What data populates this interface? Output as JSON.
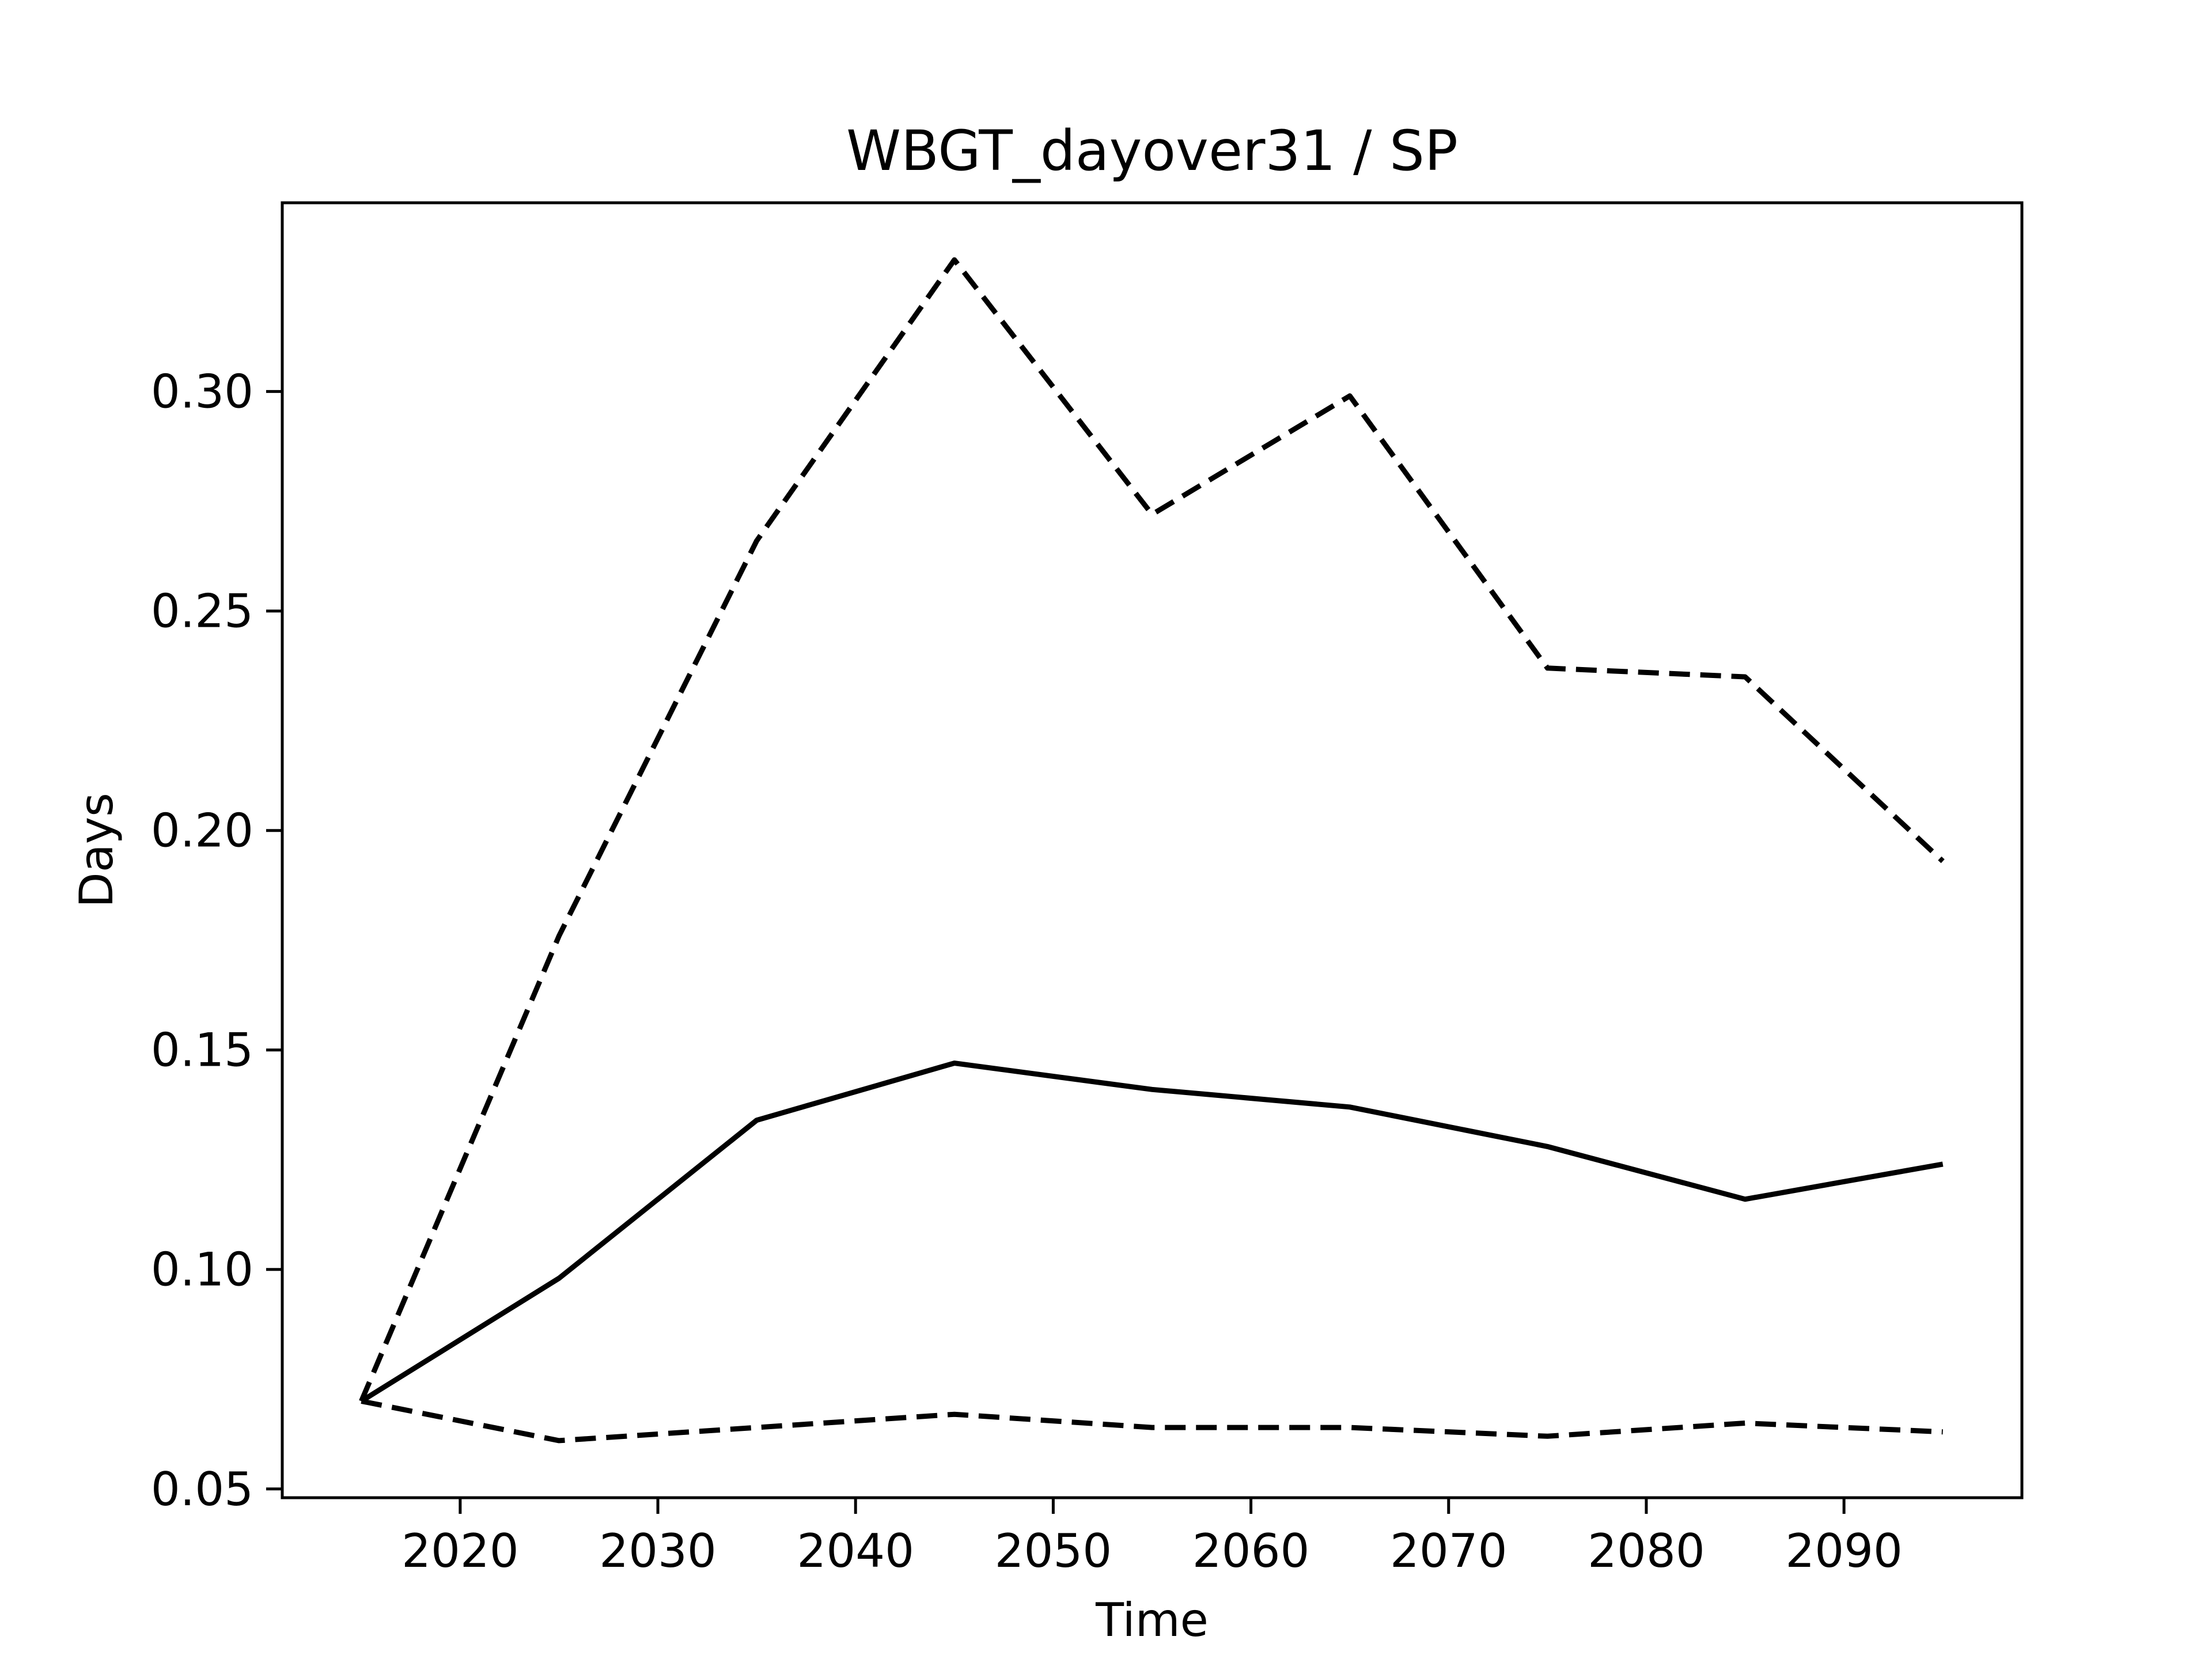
{
  "chart_data": {
    "type": "line",
    "title": "WBGT_dayover31 / SP",
    "xlabel": "Time",
    "ylabel": "Days",
    "xlim": [
      2011,
      2099
    ],
    "ylim": [
      0.048,
      0.343
    ],
    "x_ticks": [
      2020,
      2030,
      2040,
      2050,
      2060,
      2070,
      2080,
      2090
    ],
    "y_ticks": [
      0.05,
      0.1,
      0.15,
      0.2,
      0.25,
      0.3
    ],
    "x_tick_labels": [
      "2020",
      "2030",
      "2040",
      "2050",
      "2060",
      "2070",
      "2080",
      "2090"
    ],
    "y_tick_labels": [
      "0.05",
      "0.10",
      "0.15",
      "0.20",
      "0.25",
      "0.30"
    ],
    "grid": false,
    "legend": "none",
    "x": [
      2015,
      2025,
      2035,
      2045,
      2055,
      2065,
      2075,
      2085,
      2095
    ],
    "series": [
      {
        "style": "dashed",
        "color": "#000000",
        "values": [
          0.07,
          0.176,
          0.266,
          0.33,
          0.272,
          0.299,
          0.237,
          0.235,
          0.193
        ]
      },
      {
        "style": "solid",
        "color": "#000000",
        "values": [
          0.07,
          0.098,
          0.134,
          0.147,
          0.141,
          0.137,
          0.128,
          0.116,
          0.124
        ]
      },
      {
        "style": "dashed",
        "color": "#000000",
        "values": [
          0.07,
          0.061,
          0.064,
          0.067,
          0.064,
          0.064,
          0.062,
          0.065,
          0.063
        ]
      }
    ]
  }
}
